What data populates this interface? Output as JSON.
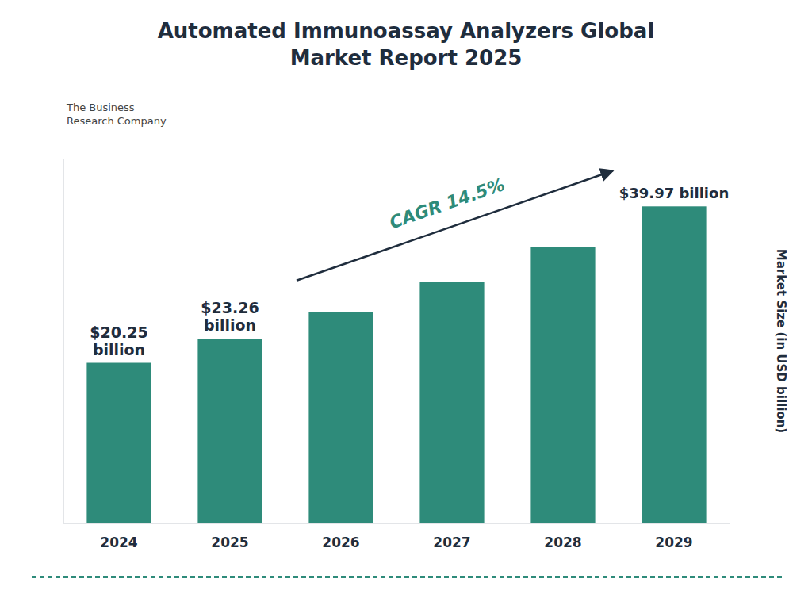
{
  "chart_data": {
    "type": "bar",
    "title": "Automated Immunoassay Analyzers Global\nMarket Report 2025",
    "y_label": "Market Size (in USD billion)",
    "categories": [
      "2024",
      "2025",
      "2026",
      "2027",
      "2028",
      "2029"
    ],
    "values": [
      20.25,
      23.26,
      26.62,
      30.47,
      34.87,
      39.97
    ],
    "value_labels": [
      "$20.25\nbillion",
      "$23.26\nbillion",
      null,
      null,
      null,
      "$39.97 billion"
    ],
    "color": "#2e8b7a",
    "ylim": [
      0,
      46
    ],
    "grid": false,
    "tick_labels": "x",
    "annotations": [
      {
        "text": "CAGR 14.5%"
      },
      {
        "text": "The Business\nResearch Company"
      }
    ]
  }
}
